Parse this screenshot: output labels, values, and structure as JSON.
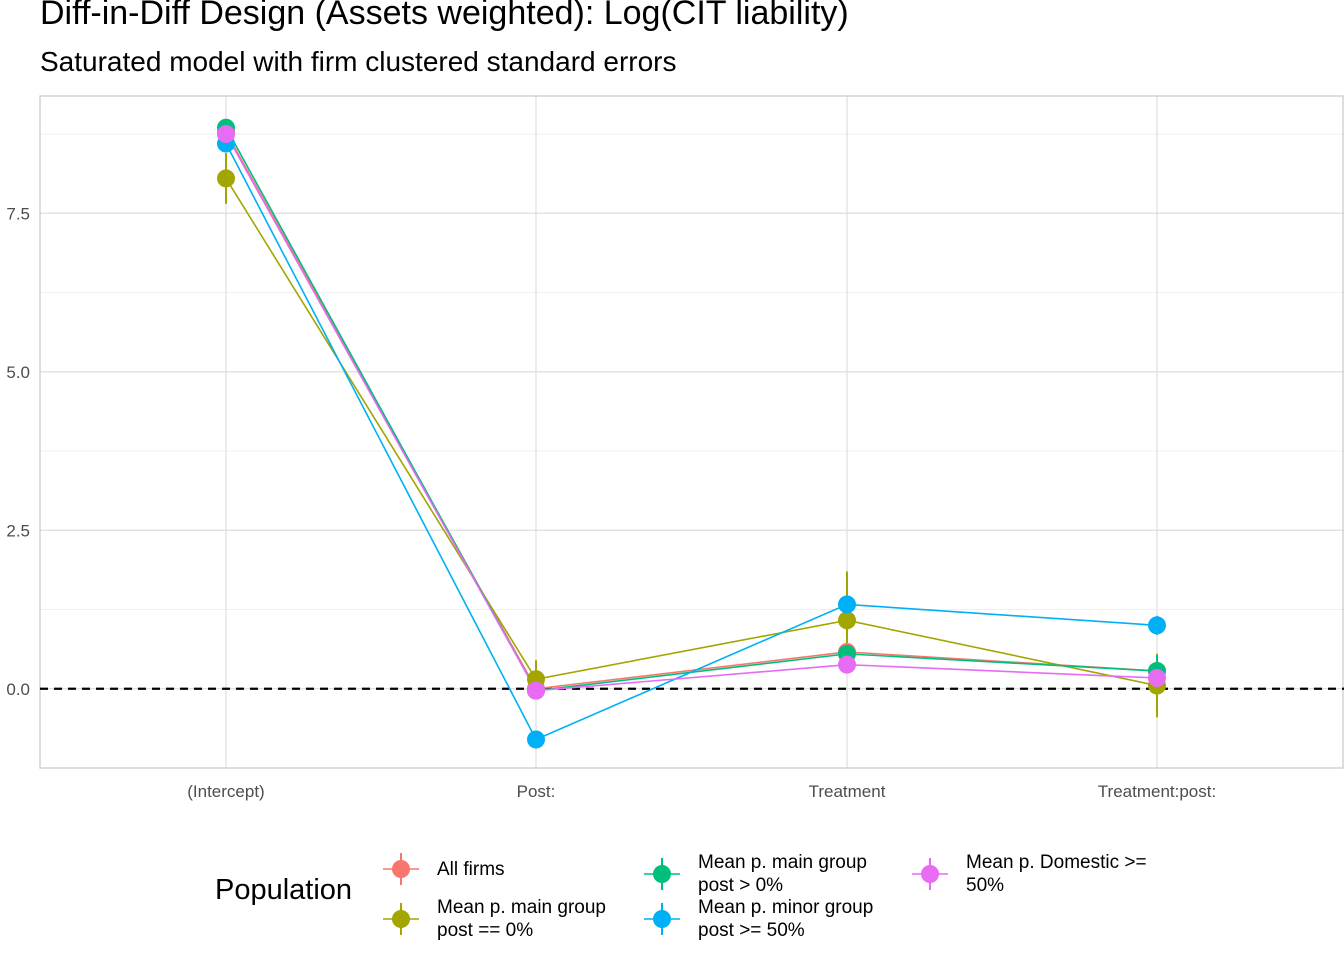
{
  "chart_data": {
    "type": "line",
    "title": "Diff-in-Diff Design (Assets weighted): Log(CIT liability)",
    "subtitle": "Saturated model with firm clustered standard errors",
    "xlabel": "",
    "ylabel": "",
    "categories": [
      "(Intercept)",
      "Post:",
      "Treatment",
      "Treatment:post:"
    ],
    "y_ticks": [
      "0.0",
      "2.5",
      "5.0",
      "7.5"
    ],
    "y_tick_values": [
      0,
      2.5,
      5,
      7.5
    ],
    "ylim": [
      -1.25,
      9.35
    ],
    "reference_line": 0,
    "grid": true,
    "legend_position": "bottom",
    "legend_title": "Population",
    "series": [
      {
        "name": "All firms",
        "color": "#F8766D",
        "values": [
          8.78,
          0.0,
          0.58,
          0.28
        ],
        "lower": [
          8.63,
          -0.05,
          0.48,
          0.18
        ],
        "upper": [
          8.93,
          0.05,
          0.68,
          0.38
        ]
      },
      {
        "name": "Mean p. main group\npost == 0%",
        "color": "#A3A500",
        "values": [
          8.05,
          0.15,
          1.08,
          0.05
        ],
        "lower": [
          7.65,
          -0.15,
          0.3,
          -0.45
        ],
        "upper": [
          8.45,
          0.45,
          1.85,
          0.55
        ]
      },
      {
        "name": "Mean p. main group\npost > 0%",
        "color": "#00BF7D",
        "values": [
          8.85,
          -0.03,
          0.55,
          0.28
        ],
        "lower": [
          8.72,
          -0.1,
          0.45,
          0.03
        ],
        "upper": [
          8.98,
          0.04,
          0.65,
          0.53
        ]
      },
      {
        "name": "Mean p. minor group\npost >= 50%",
        "color": "#00B0F6",
        "values": [
          8.6,
          -0.8,
          1.33,
          1.0
        ],
        "lower": [
          8.5,
          -0.9,
          1.2,
          0.85
        ],
        "upper": [
          8.7,
          -0.7,
          1.46,
          1.15
        ]
      },
      {
        "name": "Mean p. Domestic >=\n50%",
        "color": "#E76BF3",
        "values": [
          8.75,
          -0.03,
          0.38,
          0.17
        ],
        "lower": [
          8.65,
          -0.1,
          0.28,
          0.07
        ],
        "upper": [
          8.85,
          0.04,
          0.48,
          0.27
        ]
      }
    ]
  }
}
